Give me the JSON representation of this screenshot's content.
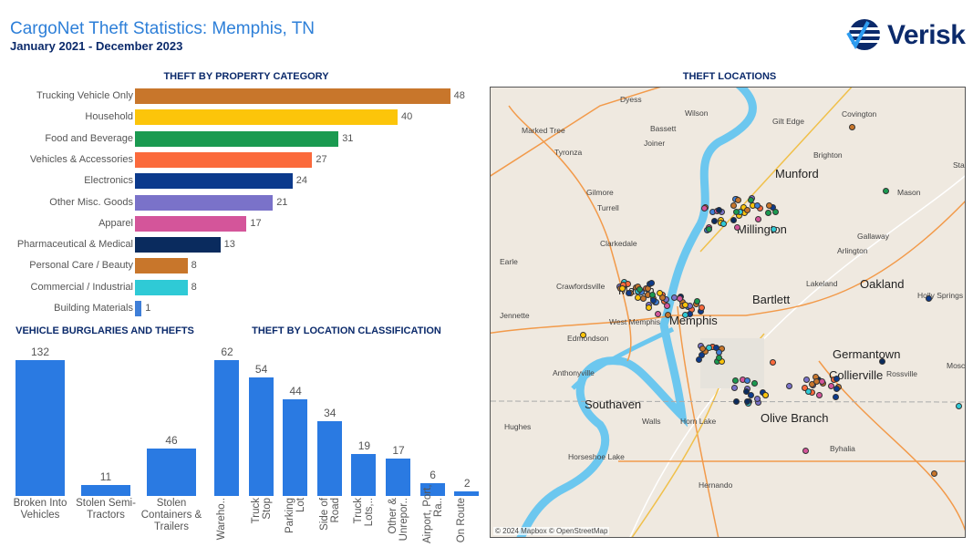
{
  "header": {
    "title": "CargoNet Theft Statistics: Memphis, TN",
    "subtitle": "January 2021 - December 2023",
    "logo_text": "Verisk"
  },
  "chart_data": [
    {
      "type": "bar",
      "orientation": "horizontal",
      "title": "THEFT BY PROPERTY CATEGORY",
      "categories": [
        "Trucking Vehicle Only",
        "Household",
        "Food and Beverage",
        "Vehicles & Accessories",
        "Electronics",
        "Other Misc. Goods",
        "Apparel",
        "Pharmaceutical & Medical",
        "Personal Care / Beauty",
        "Commercial / Industrial",
        "Building Materials"
      ],
      "values": [
        48,
        40,
        31,
        27,
        24,
        21,
        17,
        13,
        8,
        8,
        1
      ],
      "colors": [
        "#c8762b",
        "#fcc50a",
        "#1a9a50",
        "#fb6a3c",
        "#0c3a8c",
        "#7a72c9",
        "#d4559a",
        "#0a2b5e",
        "#c8762b",
        "#2fcad6",
        "#3f7fd8"
      ]
    },
    {
      "type": "bar",
      "title": "VEHICLE BURGLARIES AND THEFTS",
      "categories": [
        "Broken Into Vehicles",
        "Stolen Semi-Tractors",
        "Stolen Containers & Trailers"
      ],
      "values": [
        132,
        11,
        46
      ],
      "color": "#2a7ae2"
    },
    {
      "type": "bar",
      "title": "THEFT BY LOCATION CLASSIFICATION",
      "categories": [
        "Wareho..",
        "Truck Stop",
        "Parking Lot",
        "Side of Road",
        "Truck Lots,..",
        "Other & Unrepor..",
        "Airport, Port, Ra..",
        "On Route"
      ],
      "values": [
        62,
        54,
        44,
        34,
        19,
        17,
        6,
        2
      ],
      "color": "#2a7ae2"
    }
  ],
  "map": {
    "title": "THEFT LOCATIONS",
    "attribution": "© 2024 Mapbox © OpenStreetMap",
    "places": [
      "Dyess",
      "Wilson",
      "Bassett",
      "Marked Tree",
      "Joiner",
      "Tyronza",
      "Gilt Edge",
      "Covington",
      "Brighton",
      "Munford",
      "Gilmore",
      "Turrell",
      "Mason",
      "Millington",
      "Clarkedale",
      "Gallaway",
      "Arlington",
      "Earle",
      "Crawfordsville",
      "Marion",
      "Lakeland",
      "Oakland",
      "Bartlett",
      "Jennette",
      "West Memphis",
      "Memphis",
      "Edmondson",
      "Germantown",
      "Anthonyville",
      "Collierville",
      "Rossville",
      "Southaven",
      "Walls",
      "Horn Lake",
      "Olive Branch",
      "Hughes",
      "Horseshoe Lake",
      "Byhalia",
      "Hernando",
      "Holly Springs",
      "Stant",
      "Mosco"
    ]
  }
}
